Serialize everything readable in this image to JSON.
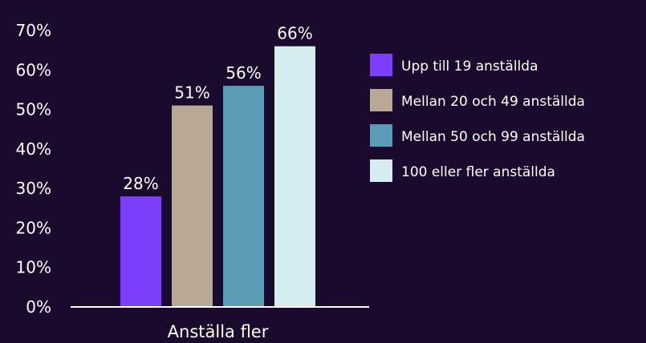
{
  "chart_data": {
    "type": "bar",
    "categories": [
      "Anställa fler"
    ],
    "ylim": [
      0,
      70
    ],
    "yticks": [
      0,
      10,
      20,
      30,
      40,
      50,
      60,
      70
    ],
    "ytick_format": "%",
    "grid": false,
    "legend_position": "right",
    "series": [
      {
        "name": "Upp till 19 anställda",
        "values": [
          28
        ],
        "label": "28%",
        "color": "#7b3ffc"
      },
      {
        "name": "Mellan 20 och 49 anställda",
        "values": [
          51
        ],
        "label": "51%",
        "color": "#b8a996"
      },
      {
        "name": "Mellan 50 och 99 anställda",
        "values": [
          56
        ],
        "label": "56%",
        "color": "#5a9cb6"
      },
      {
        "name": "100 eller fler anställda",
        "values": [
          66
        ],
        "label": "66%",
        "color": "#d6edef"
      }
    ]
  }
}
